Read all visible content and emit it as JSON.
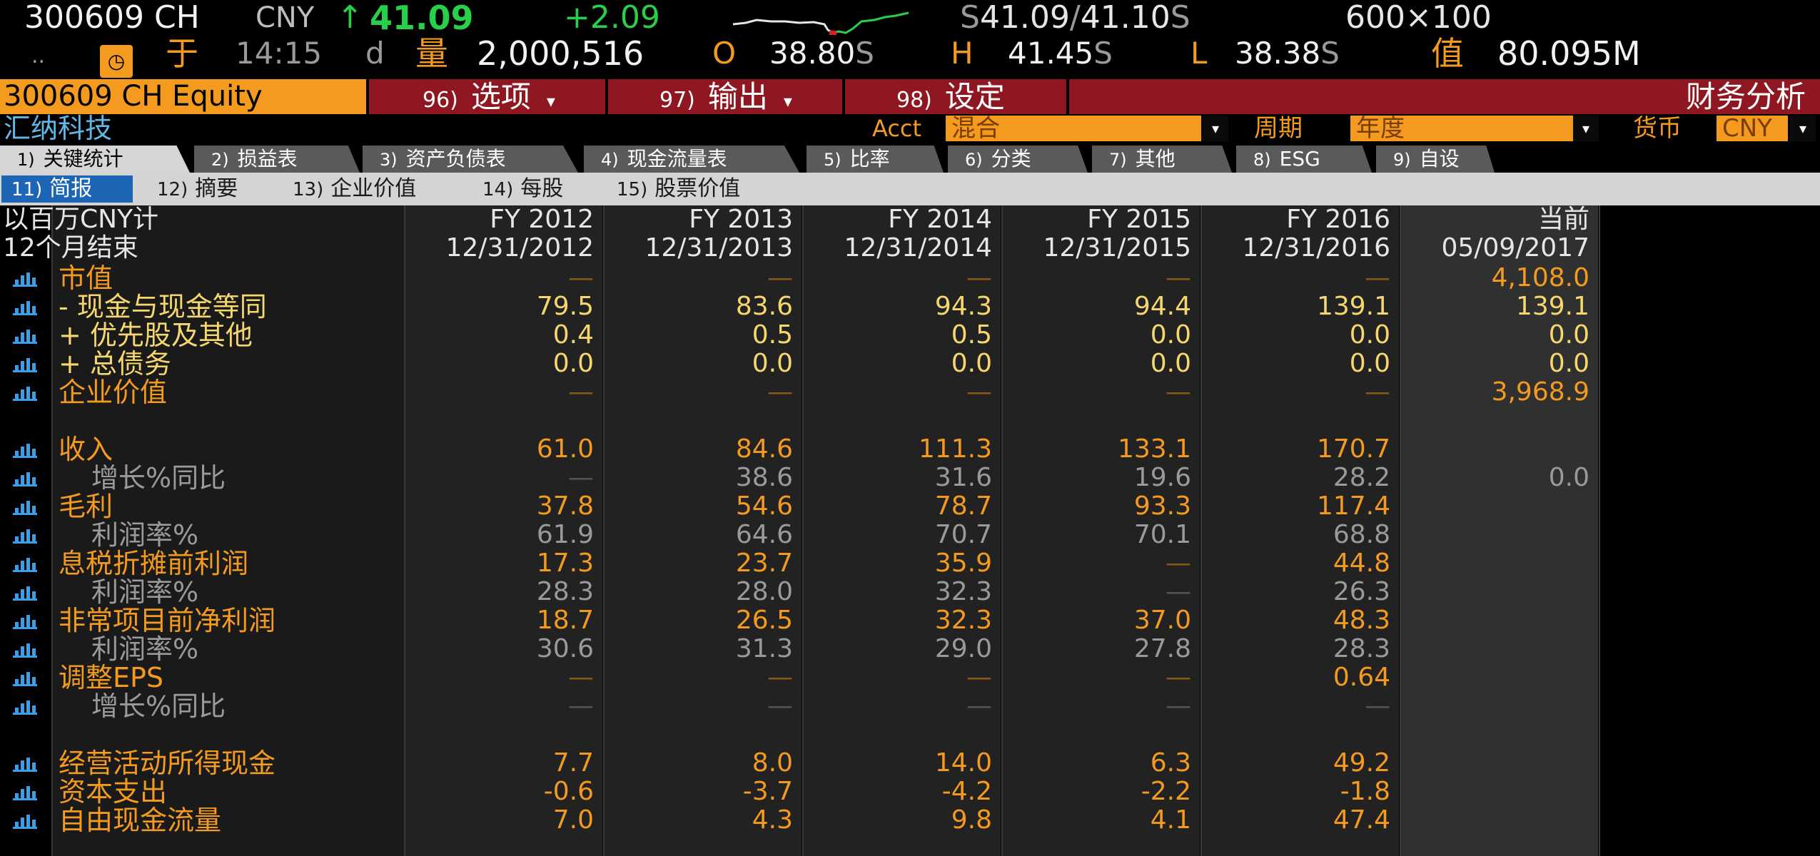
{
  "quote": {
    "ticker": "300609 CH",
    "currency": "CNY",
    "arrow": "↑",
    "last": "41.09",
    "change": "+2.09",
    "bid": "41.09",
    "ask": "41.10",
    "bid_ask_sep": "/",
    "bid_sfx": "S",
    "ask_sfx": "S",
    "size": "600×100",
    "dots": "..",
    "gauge_icon": "gauge-icon",
    "time_label": "于",
    "time": "14:15",
    "time_sfx": "d",
    "volume_label": "量",
    "volume": "2,000,516",
    "open_label": "O",
    "open": "38.80",
    "open_sfx": "S",
    "high_label": "H",
    "high": "41.45",
    "high_sfx": "S",
    "low_label": "L",
    "low": "38.38",
    "low_sfx": "S",
    "value_label": "值",
    "value": "80.095M",
    "colors": {
      "up": "#28d04a",
      "accent": "#f39a1f",
      "bar": "#8e1721"
    }
  },
  "menu": {
    "security": "300609 CH Equity",
    "items": [
      {
        "num": "96)",
        "label": "选项",
        "caret": "▾"
      },
      {
        "num": "97)",
        "label": "输出",
        "caret": "▾"
      },
      {
        "num": "98)",
        "label": "设定"
      }
    ],
    "title": "财务分析"
  },
  "controls": {
    "company": "汇纳科技",
    "acct_label": "Acct",
    "acct_value": "混合",
    "period_label": "周期",
    "period_value": "年度",
    "currency_label": "货币",
    "currency_value": "CNY",
    "dropdown_icon": "▾"
  },
  "tabs": [
    {
      "num": "1)",
      "label": "关键统计"
    },
    {
      "num": "2)",
      "label": "损益表"
    },
    {
      "num": "3)",
      "label": "资产负债表"
    },
    {
      "num": "4)",
      "label": "现金流量表"
    },
    {
      "num": "5)",
      "label": "比率"
    },
    {
      "num": "6)",
      "label": "分类"
    },
    {
      "num": "7)",
      "label": "其他"
    },
    {
      "num": "8)",
      "label": "ESG"
    },
    {
      "num": "9)",
      "label": "自设"
    }
  ],
  "subtabs": [
    {
      "num": "11)",
      "label": "简报"
    },
    {
      "num": "12)",
      "label": "摘要"
    },
    {
      "num": "13)",
      "label": "企业价值"
    },
    {
      "num": "14)",
      "label": "每股"
    },
    {
      "num": "15)",
      "label": "股票价值"
    }
  ],
  "table": {
    "unit_label": "以百万CNY计",
    "period_label": "12个月结束",
    "columns": [
      "FY 2012",
      "FY 2013",
      "FY 2014",
      "FY 2015",
      "FY 2016",
      "当前"
    ],
    "dates": [
      "12/31/2012",
      "12/31/2013",
      "12/31/2014",
      "12/31/2015",
      "12/31/2016",
      "05/09/2017"
    ],
    "rows": [
      {
        "label": "市值",
        "values": [
          "—",
          "—",
          "—",
          "—",
          "—",
          "4,108.0"
        ]
      },
      {
        "label": "- 现金与现金等同",
        "values": [
          "79.5",
          "83.6",
          "94.3",
          "94.4",
          "139.1",
          "139.1"
        ]
      },
      {
        "label": "+ 优先股及其他",
        "values": [
          "0.4",
          "0.5",
          "0.5",
          "0.0",
          "0.0",
          "0.0"
        ]
      },
      {
        "label": "+ 总债务",
        "values": [
          "0.0",
          "0.0",
          "0.0",
          "0.0",
          "0.0",
          "0.0"
        ]
      },
      {
        "label": "企业价值",
        "values": [
          "—",
          "—",
          "—",
          "—",
          "—",
          "3,968.9"
        ]
      },
      {
        "label": "收入",
        "values": [
          "61.0",
          "84.6",
          "111.3",
          "133.1",
          "170.7",
          ""
        ]
      },
      {
        "label": "增长%同比",
        "values": [
          "—",
          "38.6",
          "31.6",
          "19.6",
          "28.2",
          "0.0"
        ]
      },
      {
        "label": "毛利",
        "values": [
          "37.8",
          "54.6",
          "78.7",
          "93.3",
          "117.4",
          ""
        ]
      },
      {
        "label": "利润率%",
        "values": [
          "61.9",
          "64.6",
          "70.7",
          "70.1",
          "68.8",
          ""
        ]
      },
      {
        "label": "息税折摊前利润",
        "values": [
          "17.3",
          "23.7",
          "35.9",
          "—",
          "44.8",
          ""
        ]
      },
      {
        "label": "利润率%",
        "values": [
          "28.3",
          "28.0",
          "32.3",
          "—",
          "26.3",
          ""
        ]
      },
      {
        "label": "非常项目前净利润",
        "values": [
          "18.7",
          "26.5",
          "32.3",
          "37.0",
          "48.3",
          ""
        ]
      },
      {
        "label": "利润率%",
        "values": [
          "30.6",
          "31.3",
          "29.0",
          "27.8",
          "28.3",
          ""
        ]
      },
      {
        "label": "调整EPS",
        "values": [
          "—",
          "—",
          "—",
          "—",
          "0.64",
          ""
        ]
      },
      {
        "label": "增长%同比",
        "values": [
          "—",
          "—",
          "—",
          "—",
          "—",
          ""
        ]
      },
      {
        "label": "经营活动所得现金",
        "values": [
          "7.7",
          "8.0",
          "14.0",
          "6.3",
          "49.2",
          ""
        ]
      },
      {
        "label": "资本支出",
        "values": [
          "-0.6",
          "-3.7",
          "-4.2",
          "-2.2",
          "-1.8",
          ""
        ]
      },
      {
        "label": "自由现金流量",
        "values": [
          "7.0",
          "4.3",
          "9.8",
          "4.1",
          "47.4",
          ""
        ]
      }
    ]
  }
}
